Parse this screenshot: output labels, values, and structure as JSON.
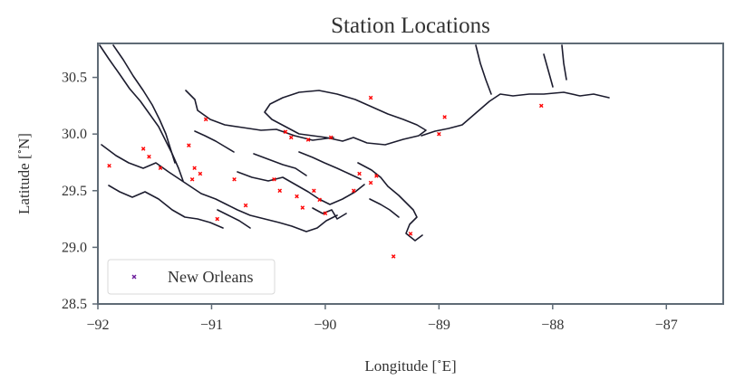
{
  "chart_data": {
    "type": "scatter",
    "title": "Station Locations",
    "xlabel": "Longitude [$^\\circ$E]",
    "xlabel_parts": [
      "Longitude [",
      "∘",
      "E]"
    ],
    "ylabel": "Latitude [$^\\circ$N]",
    "ylabel_parts": [
      "Latitude [",
      "∘",
      "N]"
    ],
    "xlim": [
      -92,
      -86.5
    ],
    "ylim": [
      28.5,
      30.8
    ],
    "x_ticks": [
      -92,
      -91,
      -90,
      -89,
      -88,
      -87
    ],
    "x_tick_labels": [
      "−92",
      "−91",
      "−90",
      "−89",
      "−88",
      "−87"
    ],
    "y_ticks": [
      28.5,
      29.0,
      29.5,
      30.0,
      30.5
    ],
    "y_tick_labels": [
      "28.5",
      "29.0",
      "29.5",
      "30.0",
      "30.5"
    ],
    "grid": false,
    "legend_position": "lower-left",
    "series": [
      {
        "name": "New Orleans",
        "marker": "x",
        "color": "#ff0000",
        "legend_marker_color": "#6a1b9a",
        "points": [
          {
            "x": -91.9,
            "y": 29.72
          },
          {
            "x": -91.6,
            "y": 29.87
          },
          {
            "x": -91.55,
            "y": 29.8
          },
          {
            "x": -91.45,
            "y": 29.7
          },
          {
            "x": -91.2,
            "y": 29.9
          },
          {
            "x": -91.15,
            "y": 29.7
          },
          {
            "x": -91.17,
            "y": 29.6
          },
          {
            "x": -91.1,
            "y": 29.65
          },
          {
            "x": -91.05,
            "y": 30.13
          },
          {
            "x": -90.95,
            "y": 29.25
          },
          {
            "x": -90.8,
            "y": 29.6
          },
          {
            "x": -90.7,
            "y": 29.37
          },
          {
            "x": -90.45,
            "y": 29.6
          },
          {
            "x": -90.4,
            "y": 29.5
          },
          {
            "x": -90.35,
            "y": 30.02
          },
          {
            "x": -90.3,
            "y": 29.97
          },
          {
            "x": -90.25,
            "y": 29.45
          },
          {
            "x": -90.2,
            "y": 29.35
          },
          {
            "x": -90.15,
            "y": 29.95
          },
          {
            "x": -90.1,
            "y": 29.5
          },
          {
            "x": -90.05,
            "y": 29.42
          },
          {
            "x": -90.0,
            "y": 29.3
          },
          {
            "x": -89.95,
            "y": 29.97
          },
          {
            "x": -89.75,
            "y": 29.5
          },
          {
            "x": -89.7,
            "y": 29.65
          },
          {
            "x": -89.6,
            "y": 29.57
          },
          {
            "x": -89.55,
            "y": 29.63
          },
          {
            "x": -89.4,
            "y": 28.92
          },
          {
            "x": -89.25,
            "y": 29.12
          },
          {
            "x": -89.6,
            "y": 30.32
          },
          {
            "x": -89.0,
            "y": 30.0
          },
          {
            "x": -88.95,
            "y": 30.15
          },
          {
            "x": -88.1,
            "y": 30.25
          }
        ]
      }
    ]
  }
}
